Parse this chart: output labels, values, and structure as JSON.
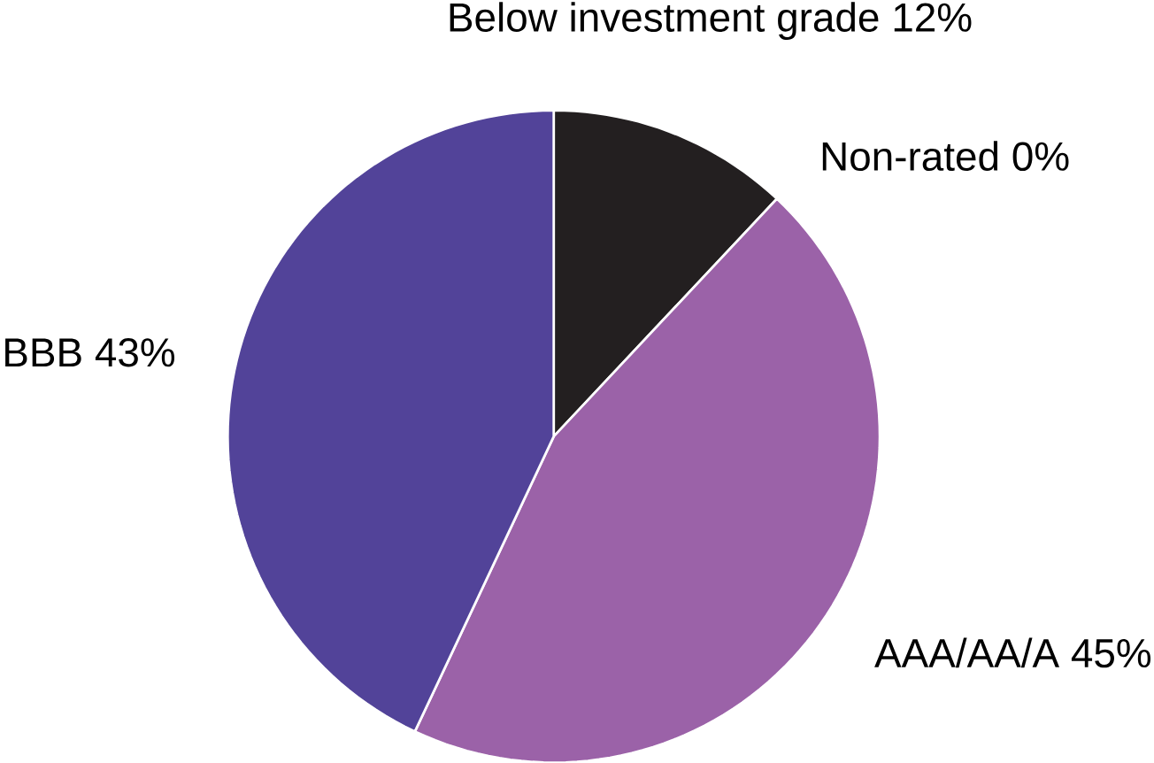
{
  "chart_data": {
    "type": "pie",
    "categories": [
      "Below investment grade",
      "Non-rated",
      "AAA/AA/A",
      "BBB"
    ],
    "values": [
      12,
      0,
      45,
      43
    ],
    "value_labels": [
      "12%",
      "0%",
      "45%",
      "43%"
    ],
    "colors": [
      "#231f20",
      "#231f20",
      "#9b62a8",
      "#524399"
    ]
  }
}
